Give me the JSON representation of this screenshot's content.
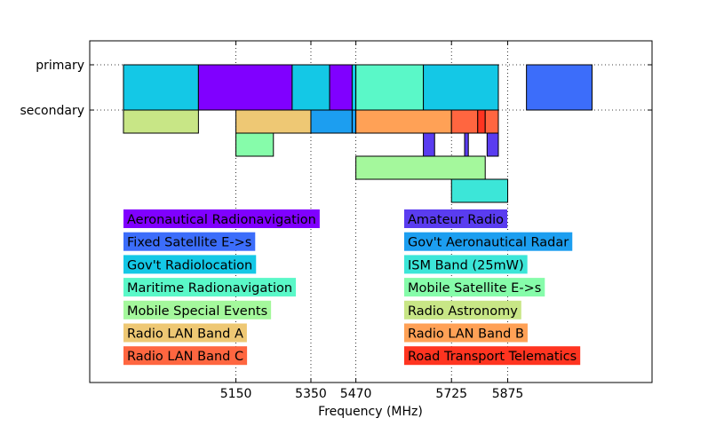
{
  "chart_data": {
    "type": "bar",
    "orientation": "horizontal-ranges",
    "xlabel": "Frequency (MHz)",
    "ylabel": "",
    "title": "",
    "xlim": [
      4760,
      6260
    ],
    "x_ticks": [
      5150,
      5350,
      5470,
      5725,
      5875
    ],
    "y_ticks": [
      {
        "label": "primary",
        "level": 0
      },
      {
        "label": "secondary",
        "level": 1
      }
    ],
    "grid": true,
    "legend_placement": "lower-center-two-columns",
    "bands": [
      {
        "name": "Aeronautical Radionavigation",
        "color": "#8000ff"
      },
      {
        "name": "Fixed Satellite E->s",
        "color": "#3c6dfa"
      },
      {
        "name": "Gov't Radiolocation",
        "color": "#14c8e6"
      },
      {
        "name": "Maritime Radionavigation",
        "color": "#5af8c8"
      },
      {
        "name": "Mobile Special Events",
        "color": "#a4f89c"
      },
      {
        "name": "Radio LAN Band A",
        "color": "#eec874"
      },
      {
        "name": "Radio LAN Band C",
        "color": "#ff6640"
      },
      {
        "name": "Amateur Radio",
        "color": "#5a3cf0"
      },
      {
        "name": "Gov't Aeronautical Radar",
        "color": "#1c9ef0"
      },
      {
        "name": "ISM Band (25mW)",
        "color": "#3ce6d8"
      },
      {
        "name": "Mobile Satellite E->s",
        "color": "#86fcaa"
      },
      {
        "name": "Radio Astronomy",
        "color": "#c8e686"
      },
      {
        "name": "Radio LAN Band B",
        "color": "#ffa156"
      },
      {
        "name": "Road Transport Telematics",
        "color": "#ff3420"
      }
    ],
    "allocations": [
      {
        "band": 2,
        "level": 0,
        "start": 4850,
        "end": 5050
      },
      {
        "band": 0,
        "level": 0,
        "start": 5050,
        "end": 5300
      },
      {
        "band": 2,
        "level": 0,
        "start": 5300,
        "end": 5400
      },
      {
        "band": 0,
        "level": 0,
        "start": 5400,
        "end": 5460
      },
      {
        "band": 2,
        "level": 0,
        "start": 5460,
        "end": 5470
      },
      {
        "band": 3,
        "level": 0,
        "start": 5470,
        "end": 5650
      },
      {
        "band": 2,
        "level": 0,
        "start": 5650,
        "end": 5850
      },
      {
        "band": 1,
        "level": 0,
        "start": 5925,
        "end": 6100
      },
      {
        "band": 11,
        "level": 1,
        "start": 4850,
        "end": 5050
      },
      {
        "band": 5,
        "level": 1,
        "start": 5150,
        "end": 5350
      },
      {
        "band": 8,
        "level": 1,
        "start": 5350,
        "end": 5460
      },
      {
        "band": 8,
        "level": 1,
        "start": 5460,
        "end": 5470
      },
      {
        "band": 12,
        "level": 1,
        "start": 5470,
        "end": 5725
      },
      {
        "band": 6,
        "level": 1,
        "start": 5725,
        "end": 5795
      },
      {
        "band": 13,
        "level": 1,
        "start": 5795,
        "end": 5815
      },
      {
        "band": 6,
        "level": 1,
        "start": 5815,
        "end": 5850
      },
      {
        "band": 10,
        "level": 2,
        "start": 5150,
        "end": 5250
      },
      {
        "band": 7,
        "level": 2,
        "start": 5650,
        "end": 5680
      },
      {
        "band": 7,
        "level": 2,
        "start": 5760,
        "end": 5770
      },
      {
        "band": 7,
        "level": 2,
        "start": 5820,
        "end": 5850
      },
      {
        "band": 4,
        "level": 3,
        "start": 5470,
        "end": 5815
      },
      {
        "band": 9,
        "level": 4,
        "start": 5725,
        "end": 5875
      }
    ]
  }
}
